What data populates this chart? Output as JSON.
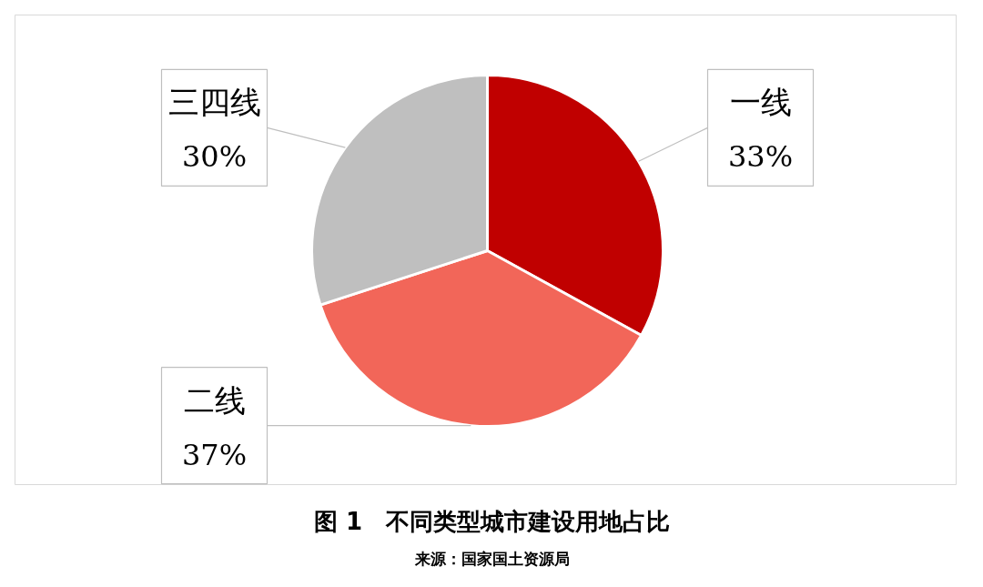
{
  "chart_data": {
    "type": "pie",
    "title": "图 1　不同类型城市建设用地占比",
    "categories": [
      "一线",
      "二线",
      "三四线"
    ],
    "values": [
      33,
      37,
      30
    ],
    "colors": [
      "#c00000",
      "#f26659",
      "#bfbfbf"
    ],
    "value_labels": [
      "33%",
      "37%",
      "30%"
    ],
    "annotations": [
      "来源：国家国土资源局"
    ]
  }
}
